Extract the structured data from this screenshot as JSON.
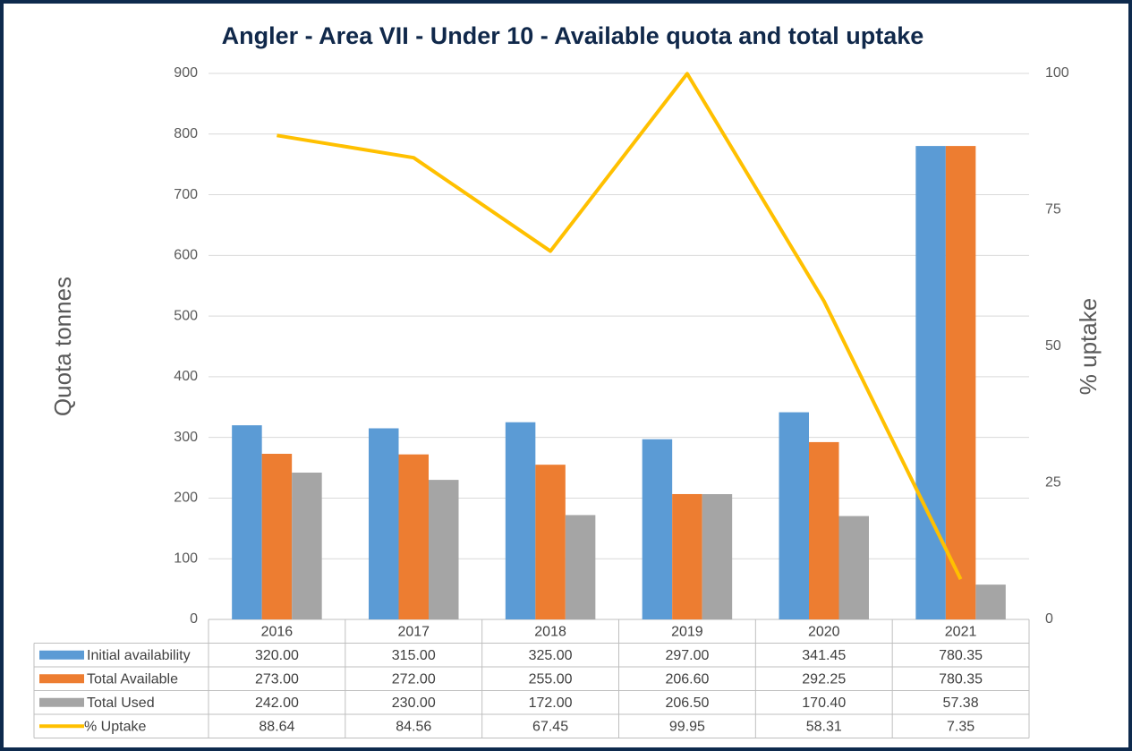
{
  "chart_data": {
    "type": "bar",
    "title": "Angler - Area VII - Under 10 - Available quota and total uptake",
    "y_label": "Quota tonnes",
    "y2_label": "% uptake",
    "categories": [
      "2016",
      "2017",
      "2018",
      "2019",
      "2020",
      "2021"
    ],
    "series": [
      {
        "name": "Initial availability",
        "type": "bar",
        "color": "#5b9bd5",
        "values": [
          320,
          315,
          325,
          297,
          341.45,
          780.35
        ],
        "value_labels": [
          "320.00",
          "315.00",
          "325.00",
          "297.00",
          "341.45",
          "780.35"
        ]
      },
      {
        "name": "Total Available",
        "type": "bar",
        "color": "#ed7d31",
        "values": [
          273,
          272,
          255,
          206.6,
          292.25,
          780.35
        ],
        "value_labels": [
          "273.00",
          "272.00",
          "255.00",
          "206.60",
          "292.25",
          "780.35"
        ]
      },
      {
        "name": "Total Used",
        "type": "bar",
        "color": "#a5a5a5",
        "values": [
          242,
          230,
          172,
          206.5,
          170.4,
          57.38
        ],
        "value_labels": [
          "242.00",
          "230.00",
          "172.00",
          "206.50",
          "170.40",
          "57.38"
        ]
      },
      {
        "name": "% Uptake",
        "type": "line",
        "axis": "y2",
        "color": "#ffc000",
        "values": [
          88.64,
          84.56,
          67.45,
          99.95,
          58.31,
          7.35
        ]
      }
    ],
    "ylim": [
      0,
      900
    ],
    "yticks": [
      0,
      100,
      200,
      300,
      400,
      500,
      600,
      700,
      800,
      900
    ],
    "y2lim": [
      0,
      100
    ],
    "y2ticks": [
      0,
      25,
      50,
      75,
      100
    ],
    "grid": true,
    "legend": "table"
  }
}
